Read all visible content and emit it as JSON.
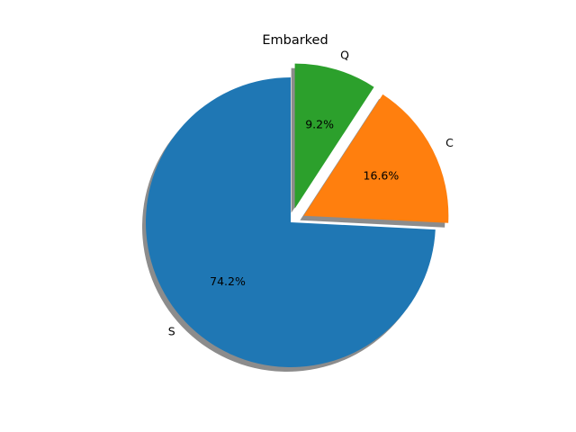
{
  "chart_data": {
    "type": "pie",
    "title": "Embarked",
    "labels": [
      "S",
      "C",
      "Q"
    ],
    "values": [
      74.2,
      16.6,
      9.2
    ],
    "percent_labels": [
      "74.2%",
      "16.6%",
      "9.2%"
    ],
    "colors": [
      "#1f77b4",
      "#ff7f0e",
      "#2ca02c"
    ],
    "explode": [
      0,
      0.1,
      0.1
    ],
    "start_angle_deg": 90,
    "shadow": true
  }
}
